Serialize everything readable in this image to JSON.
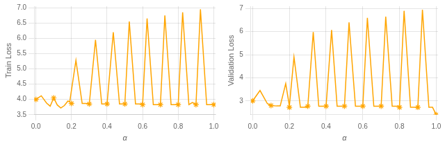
{
  "chart_data": [
    {
      "type": "line",
      "xlabel": "α",
      "ylabel": "Train Loss",
      "xlim": [
        -0.01,
        1.01
      ],
      "xticks": [
        {
          "value": 0,
          "label": "0.0"
        },
        0.2,
        0.4,
        0.6,
        0.8,
        {
          "value": 1,
          "label": "1.0"
        }
      ],
      "ylim": [
        3.5,
        7.05
      ],
      "yticks": [
        3.5,
        {
          "value": 4,
          "label": "4.0"
        },
        4.5,
        {
          "value": 5,
          "label": "5.0"
        },
        5.5,
        {
          "value": 6,
          "label": "6.0"
        },
        6.5,
        {
          "value": 7,
          "label": "7.0"
        }
      ],
      "grid": true,
      "series": [
        {
          "type": "line",
          "color": "#FFA500",
          "x": [
            0.0,
            0.03,
            0.06,
            0.08,
            0.1,
            0.12,
            0.14,
            0.16,
            0.18,
            0.19,
            0.225,
            0.26,
            0.28,
            0.3,
            0.335,
            0.37,
            0.39,
            0.4,
            0.435,
            0.47,
            0.49,
            0.5,
            0.525,
            0.56,
            0.58,
            0.6,
            0.625,
            0.66,
            0.68,
            0.7,
            0.725,
            0.76,
            0.78,
            0.8,
            0.825,
            0.86,
            0.88,
            0.9,
            0.925,
            0.96,
            0.98,
            1.0
          ],
          "values": [
            4.0,
            4.12,
            3.88,
            3.78,
            4.05,
            3.82,
            3.72,
            3.8,
            3.95,
            3.92,
            5.28,
            3.87,
            3.87,
            3.85,
            5.95,
            3.85,
            3.85,
            3.85,
            6.2,
            3.85,
            3.85,
            3.85,
            6.55,
            3.85,
            3.85,
            3.85,
            6.65,
            3.83,
            3.83,
            3.83,
            6.75,
            3.83,
            3.83,
            3.83,
            6.85,
            3.83,
            3.9,
            3.83,
            6.95,
            3.83,
            3.83,
            3.83
          ]
        },
        {
          "type": "scatter",
          "marker": "star",
          "color": "#FFA500",
          "x": [
            0.0,
            0.1,
            0.2,
            0.3,
            0.4,
            0.5,
            0.6,
            0.7,
            0.8,
            0.9,
            1.0
          ],
          "values": [
            4.0,
            4.05,
            3.87,
            3.85,
            3.85,
            3.85,
            3.83,
            3.83,
            3.83,
            3.83,
            3.83
          ]
        }
      ]
    },
    {
      "type": "line",
      "xlabel": "α",
      "ylabel": "Validation Loss",
      "xlim": [
        -0.01,
        1.01
      ],
      "xticks": [
        {
          "value": 0,
          "label": "0.0"
        },
        0.2,
        0.4,
        0.6,
        0.8,
        {
          "value": 1,
          "label": "1.0"
        }
      ],
      "ylim": [
        2.4,
        7.1
      ],
      "yticks": [
        3,
        4,
        5,
        6,
        7
      ],
      "grid": true,
      "series": [
        {
          "type": "line",
          "color": "#FFA500",
          "x": [
            0.0,
            0.04,
            0.08,
            0.1,
            0.13,
            0.15,
            0.18,
            0.2,
            0.225,
            0.26,
            0.28,
            0.3,
            0.33,
            0.36,
            0.39,
            0.4,
            0.43,
            0.46,
            0.49,
            0.5,
            0.525,
            0.56,
            0.58,
            0.6,
            0.625,
            0.66,
            0.68,
            0.7,
            0.725,
            0.76,
            0.78,
            0.8,
            0.825,
            0.86,
            0.88,
            0.9,
            0.925,
            0.96,
            0.98,
            1.0
          ],
          "values": [
            3.0,
            3.45,
            2.88,
            2.8,
            2.78,
            2.78,
            3.75,
            2.78,
            4.9,
            2.72,
            2.72,
            2.72,
            5.98,
            2.77,
            2.77,
            2.77,
            6.07,
            2.77,
            2.77,
            2.77,
            6.4,
            2.77,
            2.77,
            2.77,
            6.6,
            2.77,
            2.77,
            2.77,
            6.65,
            2.77,
            2.77,
            2.77,
            6.9,
            2.72,
            2.72,
            2.72,
            6.95,
            2.72,
            2.72,
            2.4
          ]
        },
        {
          "type": "scatter",
          "marker": "star",
          "color": "#FFA500",
          "x": [
            0.0,
            0.1,
            0.2,
            0.3,
            0.4,
            0.5,
            0.6,
            0.7,
            0.8,
            0.9,
            1.0
          ],
          "values": [
            3.0,
            2.8,
            2.72,
            2.77,
            2.77,
            2.77,
            2.77,
            2.77,
            2.72,
            2.72,
            2.4
          ]
        }
      ]
    }
  ]
}
